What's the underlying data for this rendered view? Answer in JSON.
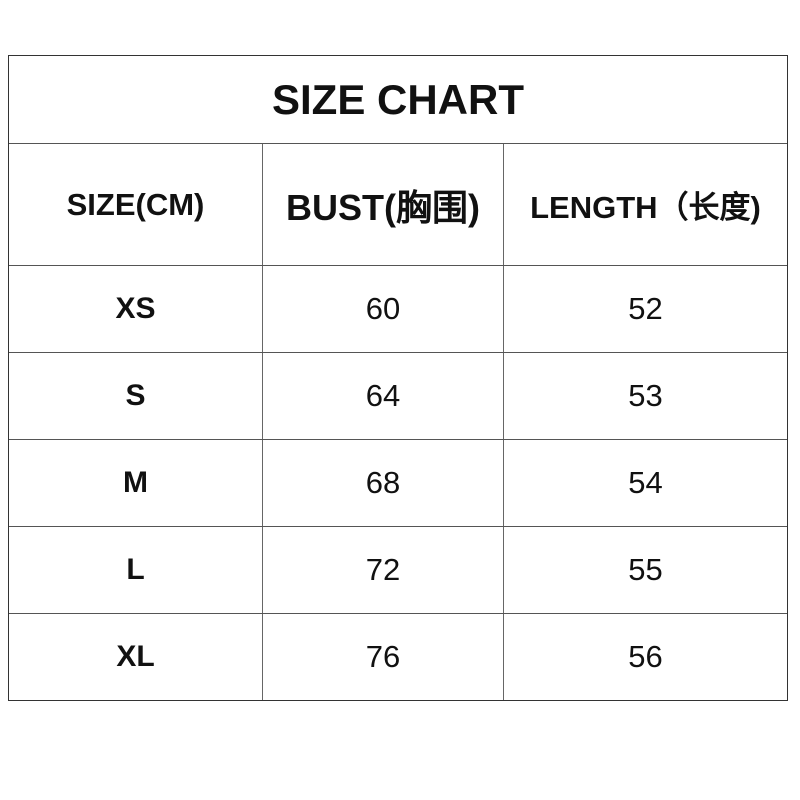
{
  "title": "SIZE CHART",
  "headers": [
    "SIZE(CM)",
    "BUST(胸围)",
    "LENGTH（长度)"
  ],
  "rows": [
    {
      "size": "XS",
      "bust": "60",
      "length": "52"
    },
    {
      "size": "S",
      "bust": "64",
      "length": "53"
    },
    {
      "size": "M",
      "bust": "68",
      "length": "54"
    },
    {
      "size": "L",
      "bust": "72",
      "length": "55"
    },
    {
      "size": "XL",
      "bust": "76",
      "length": "56"
    }
  ]
}
